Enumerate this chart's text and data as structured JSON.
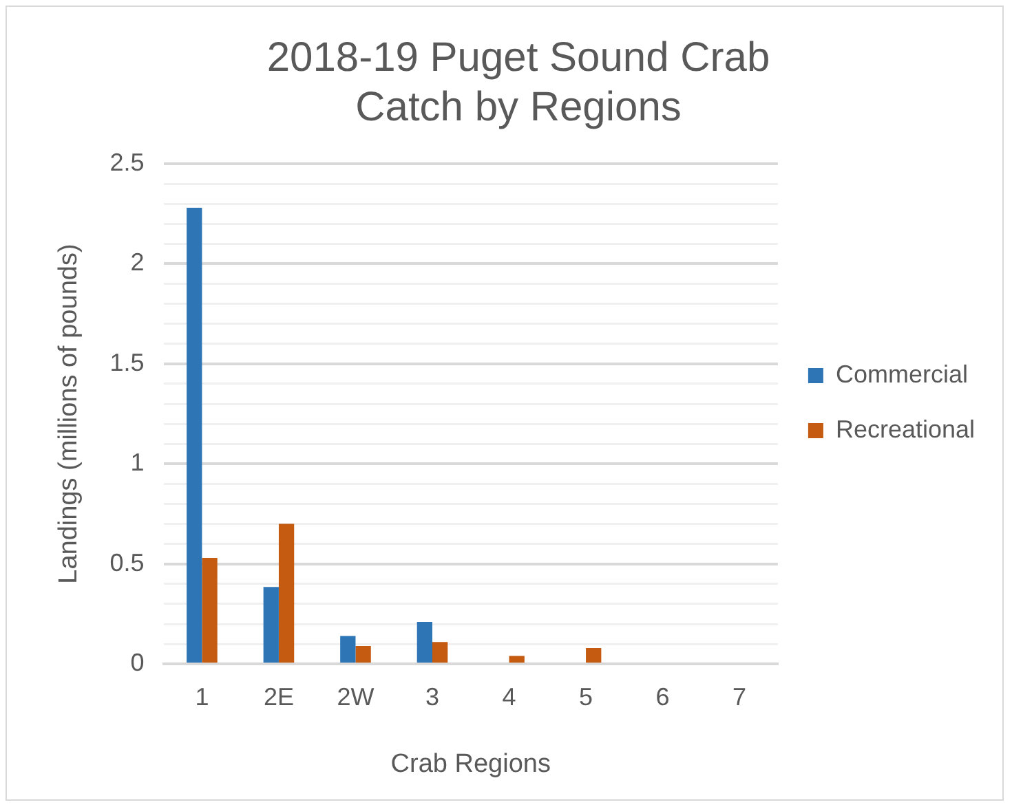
{
  "chart_data": {
    "type": "bar",
    "title": "2018-19 Puget Sound Crab Catch by Regions",
    "xlabel": "Crab Regions",
    "ylabel": "Landings (millions of pounds)",
    "categories": [
      "1",
      "2E",
      "2W",
      "3",
      "4",
      "5",
      "6",
      "7"
    ],
    "series": [
      {
        "name": "Commercial",
        "color": "#2e75b6",
        "values": [
          2.28,
          0.385,
          0.14,
          0.21,
          0,
          0,
          0,
          0
        ]
      },
      {
        "name": "Recreational",
        "color": "#c55a11",
        "values": [
          0.53,
          0.7,
          0.09,
          0.11,
          0.04,
          0.08,
          0,
          0
        ]
      }
    ],
    "ylim": [
      0,
      2.5
    ],
    "yticks": [
      0,
      {
        "value": 0.1,
        "label": null
      },
      {
        "value": 0.2,
        "label": null
      },
      {
        "value": 0.3,
        "label": null
      },
      {
        "value": 0.4,
        "label": null
      },
      0.5,
      {
        "value": 0.6,
        "label": null
      },
      {
        "value": 0.7,
        "label": null
      },
      {
        "value": 0.8,
        "label": null
      },
      {
        "value": 0.9,
        "label": null
      },
      1,
      {
        "value": 1.1,
        "label": null
      },
      {
        "value": 1.2,
        "label": null
      },
      {
        "value": 1.3,
        "label": null
      },
      {
        "value": 1.4,
        "label": null
      },
      1.5,
      {
        "value": 1.6,
        "label": null
      },
      {
        "value": 1.7,
        "label": null
      },
      {
        "value": 1.8,
        "label": null
      },
      {
        "value": 1.9,
        "label": null
      },
      2,
      {
        "value": 2.1,
        "label": null
      },
      {
        "value": 2.2,
        "label": null
      },
      {
        "value": 2.3,
        "label": null
      },
      {
        "value": 2.4,
        "label": null
      },
      2.5
    ],
    "grid": "y",
    "legend": "right"
  }
}
